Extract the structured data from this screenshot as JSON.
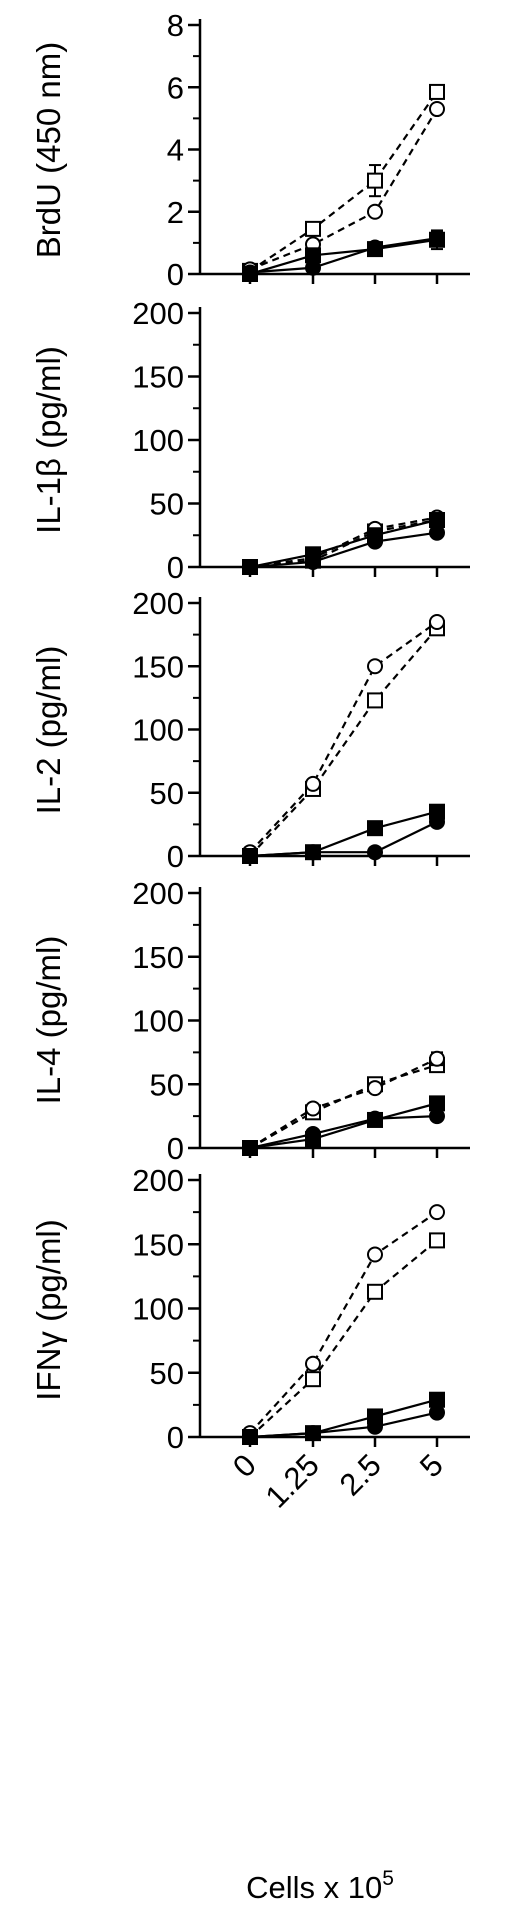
{
  "chart_data": [
    {
      "type": "line",
      "ylabel": "BrdU (450 nm)",
      "ylim": [
        0,
        8
      ],
      "yticks": [
        0,
        2,
        4,
        6,
        8
      ],
      "categories": [
        "0",
        "1.25",
        "2.5",
        "5"
      ],
      "series": [
        {
          "marker": "square-open",
          "style": "dashed",
          "values": [
            0.1,
            1.45,
            3.0,
            5.85
          ],
          "err": [
            0.05,
            0.1,
            0.5,
            0.1
          ]
        },
        {
          "marker": "circle-open",
          "style": "dashed",
          "values": [
            0.15,
            0.95,
            2.0,
            5.3
          ],
          "err": [
            0.05,
            0.1,
            0.1,
            0.1
          ]
        },
        {
          "marker": "square-filled",
          "style": "solid",
          "values": [
            0.0,
            0.6,
            0.8,
            1.1
          ],
          "err": [
            0.05,
            0.1,
            0.1,
            0.3
          ]
        },
        {
          "marker": "circle-filled",
          "style": "solid",
          "values": [
            0.05,
            0.2,
            0.85,
            1.15
          ],
          "err": [
            0.05,
            0.05,
            0.05,
            0.2
          ]
        }
      ]
    },
    {
      "type": "line",
      "ylabel": "IL-1β (pg/ml)",
      "ylim": [
        0,
        200
      ],
      "yticks": [
        0,
        50,
        100,
        150,
        200
      ],
      "categories": [
        "0",
        "1.25",
        "2.5",
        "5"
      ],
      "series": [
        {
          "marker": "square-open",
          "style": "dashed",
          "values": [
            0,
            5,
            28,
            37
          ],
          "err": [
            0,
            0,
            0,
            0
          ]
        },
        {
          "marker": "circle-open",
          "style": "dashed",
          "values": [
            0,
            7,
            30,
            39
          ],
          "err": [
            0,
            0,
            0,
            0
          ]
        },
        {
          "marker": "square-filled",
          "style": "solid",
          "values": [
            0,
            10,
            25,
            37
          ],
          "err": [
            0,
            0,
            0,
            0
          ]
        },
        {
          "marker": "circle-filled",
          "style": "solid",
          "values": [
            0,
            4,
            20,
            27
          ],
          "err": [
            0,
            0,
            0,
            0
          ]
        }
      ]
    },
    {
      "type": "line",
      "ylabel": "IL-2 (pg/ml)",
      "ylim": [
        0,
        200
      ],
      "yticks": [
        0,
        50,
        100,
        150,
        200
      ],
      "categories": [
        "0",
        "1.25",
        "2.5",
        "5"
      ],
      "series": [
        {
          "marker": "square-open",
          "style": "dashed",
          "values": [
            0,
            53,
            123,
            180
          ],
          "err": [
            0,
            0,
            0,
            0
          ]
        },
        {
          "marker": "circle-open",
          "style": "dashed",
          "values": [
            3,
            57,
            150,
            185
          ],
          "err": [
            0,
            0,
            0,
            0
          ]
        },
        {
          "marker": "square-filled",
          "style": "solid",
          "values": [
            0,
            3,
            22,
            35
          ],
          "err": [
            0,
            0,
            0,
            0
          ]
        },
        {
          "marker": "circle-filled",
          "style": "solid",
          "values": [
            0,
            3,
            3,
            27
          ],
          "err": [
            0,
            0,
            0,
            0
          ]
        }
      ]
    },
    {
      "type": "line",
      "ylabel": "IL-4 (pg/ml)",
      "ylim": [
        0,
        200
      ],
      "yticks": [
        0,
        50,
        100,
        150,
        200
      ],
      "categories": [
        "0",
        "1.25",
        "2.5",
        "5"
      ],
      "series": [
        {
          "marker": "square-open",
          "style": "dashed",
          "values": [
            0,
            28,
            50,
            65
          ],
          "err": [
            0,
            0,
            0,
            0
          ]
        },
        {
          "marker": "circle-open",
          "style": "dashed",
          "values": [
            0,
            31,
            47,
            70
          ],
          "err": [
            0,
            0,
            0,
            5
          ]
        },
        {
          "marker": "square-filled",
          "style": "solid",
          "values": [
            0,
            7,
            22,
            35
          ],
          "err": [
            0,
            0,
            0,
            0
          ]
        },
        {
          "marker": "circle-filled",
          "style": "solid",
          "values": [
            0,
            11,
            23,
            25
          ],
          "err": [
            0,
            0,
            0,
            0
          ]
        }
      ]
    },
    {
      "type": "line",
      "ylabel": "IFNγ (pg/ml)",
      "xlabel_parts": [
        "Cells x 10",
        "5"
      ],
      "ylim": [
        0,
        200
      ],
      "yticks": [
        0,
        50,
        100,
        150,
        200
      ],
      "categories": [
        "0",
        "1.25",
        "2.5",
        "5"
      ],
      "series": [
        {
          "marker": "square-open",
          "style": "dashed",
          "values": [
            0,
            45,
            113,
            153
          ],
          "err": [
            0,
            0,
            0,
            0
          ]
        },
        {
          "marker": "circle-open",
          "style": "dashed",
          "values": [
            3,
            57,
            142,
            175
          ],
          "err": [
            0,
            0,
            0,
            0
          ]
        },
        {
          "marker": "square-filled",
          "style": "solid",
          "values": [
            0,
            3,
            16,
            29
          ],
          "err": [
            0,
            0,
            0,
            0
          ]
        },
        {
          "marker": "circle-filled",
          "style": "solid",
          "values": [
            0,
            3,
            8,
            19
          ],
          "err": [
            0,
            0,
            0,
            0
          ]
        }
      ]
    }
  ]
}
